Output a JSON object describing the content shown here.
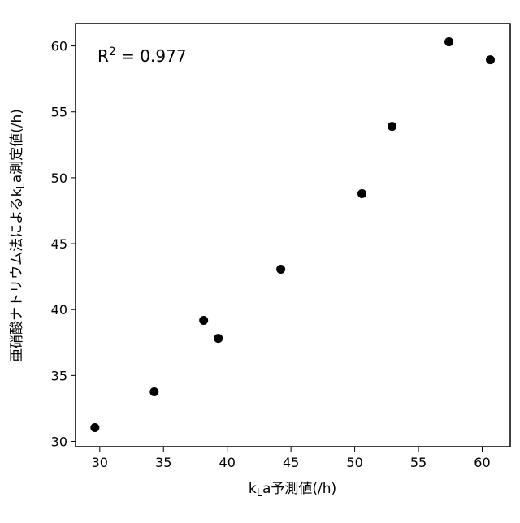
{
  "chart_data": {
    "type": "scatter",
    "annotation": {
      "base": "R",
      "sup": "2",
      "rest": " = 0.977"
    },
    "xlabel": {
      "pre": "k",
      "sub": "L",
      "post": "a予測値(/h)"
    },
    "ylabel": {
      "pre": "亜硝酸ナトリウム法によるk",
      "sub": "L",
      "post": "a測定値(/h)"
    },
    "x": [
      29.62,
      34.27,
      38.15,
      39.3,
      44.2,
      50.57,
      52.93,
      57.39,
      60.64
    ],
    "values": [
      31.05,
      33.76,
      39.18,
      37.82,
      43.06,
      48.79,
      53.9,
      60.31,
      58.95
    ],
    "color": "#000000",
    "xlim": [
      28.1,
      62.2
    ],
    "ylim": [
      29.6,
      61.7
    ],
    "xticks": [
      30,
      35,
      40,
      45,
      50,
      55,
      60
    ],
    "yticks": [
      30,
      35,
      40,
      45,
      50,
      55,
      60
    ]
  }
}
